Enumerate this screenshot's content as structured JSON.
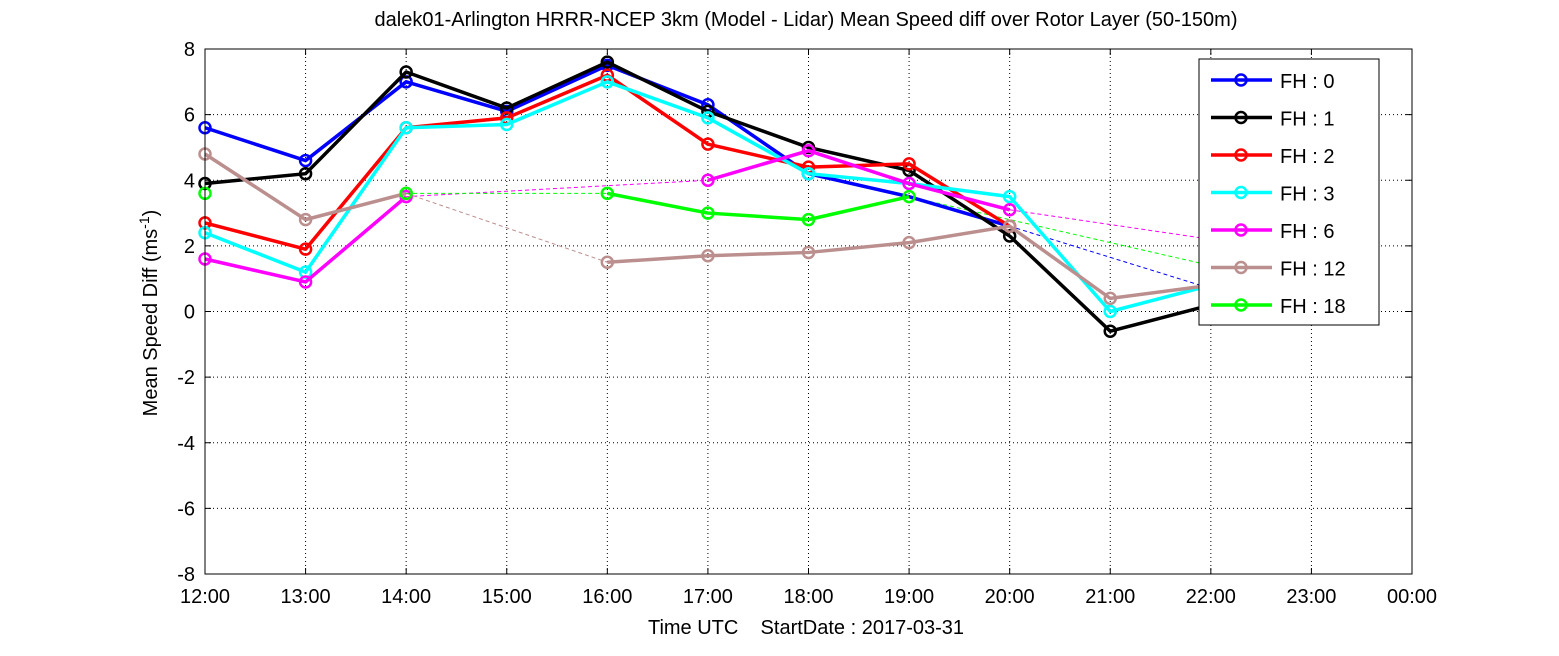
{
  "chart_data": {
    "type": "line",
    "title": "dalek01-Arlington HRRR-NCEP 3km (Model - Lidar) Mean Speed diff over Rotor Layer (50-150m)",
    "xlabel": "Time UTC    StartDate : 2017-03-31",
    "ylabel": "Mean Speed Diff (ms",
    "ylabel_sup": "-1",
    "ylabel_end": ")",
    "ylim": [
      -8,
      8
    ],
    "yticks": [
      -8,
      -6,
      -4,
      -2,
      0,
      2,
      4,
      6,
      8
    ],
    "xlim": [
      0,
      12
    ],
    "xtick_labels": [
      "12:00",
      "13:00",
      "14:00",
      "15:00",
      "16:00",
      "17:00",
      "18:00",
      "19:00",
      "20:00",
      "21:00",
      "22:00",
      "23:00",
      "00:00"
    ],
    "grid": true,
    "legend_position": "top-right",
    "series": [
      {
        "name": "FH : 0",
        "color": "#0000ff",
        "x": [
          0,
          1,
          2,
          3,
          4,
          5,
          6,
          7,
          8,
          9,
          10
        ],
        "values": [
          5.6,
          4.6,
          7.0,
          6.1,
          7.5,
          6.3,
          4.2,
          null,
          null,
          null,
          0.7
        ],
        "dashed_gaps": [
          [
            6,
            4.2,
            8,
            2.6
          ],
          [
            8,
            2.6,
            10,
            0.7
          ]
        ],
        "extra": [
          [
            7,
            3.5
          ],
          [
            8,
            2.6
          ]
        ]
      },
      {
        "name": "FH : 1",
        "color": "#000000",
        "x": [
          0,
          1,
          2,
          3,
          4,
          5,
          6,
          7,
          8,
          9,
          10
        ],
        "values": [
          3.9,
          4.2,
          7.3,
          6.2,
          7.6,
          6.1,
          5.0,
          4.3,
          2.3,
          -0.6,
          0.2
        ]
      },
      {
        "name": "FH : 2",
        "color": "#ff0000",
        "x": [
          0,
          1,
          2,
          3,
          4,
          5,
          6,
          7,
          8
        ],
        "values": [
          2.7,
          1.9,
          5.6,
          5.9,
          7.2,
          5.1,
          4.4,
          4.5,
          2.6
        ]
      },
      {
        "name": "FH : 3",
        "color": "#00ffff",
        "x": [
          0,
          1,
          2,
          3,
          4,
          5,
          6,
          7,
          8,
          9,
          10
        ],
        "values": [
          2.4,
          1.2,
          5.6,
          5.7,
          7.0,
          5.9,
          4.2,
          3.9,
          3.5,
          0.0,
          0.8
        ]
      },
      {
        "name": "FH : 6",
        "color": "#ff00ff",
        "x": [
          0,
          1,
          2,
          5,
          6,
          7,
          8
        ],
        "values": [
          1.6,
          0.9,
          3.5,
          4.0,
          4.9,
          3.9,
          3.1
        ]
      },
      {
        "name": "FH : 12",
        "color": "#bc8f8f",
        "x": [
          0,
          1,
          2,
          4,
          5,
          6,
          7,
          8,
          9,
          10
        ],
        "values": [
          4.8,
          2.8,
          3.6,
          1.5,
          1.7,
          1.8,
          2.1,
          2.6,
          0.4,
          0.8
        ]
      },
      {
        "name": "FH : 18",
        "color": "#00ff00",
        "x": [
          0,
          2,
          4,
          5,
          6,
          7
        ],
        "values": [
          3.6,
          3.6,
          3.6,
          3.0,
          2.8,
          3.5
        ]
      }
    ]
  }
}
